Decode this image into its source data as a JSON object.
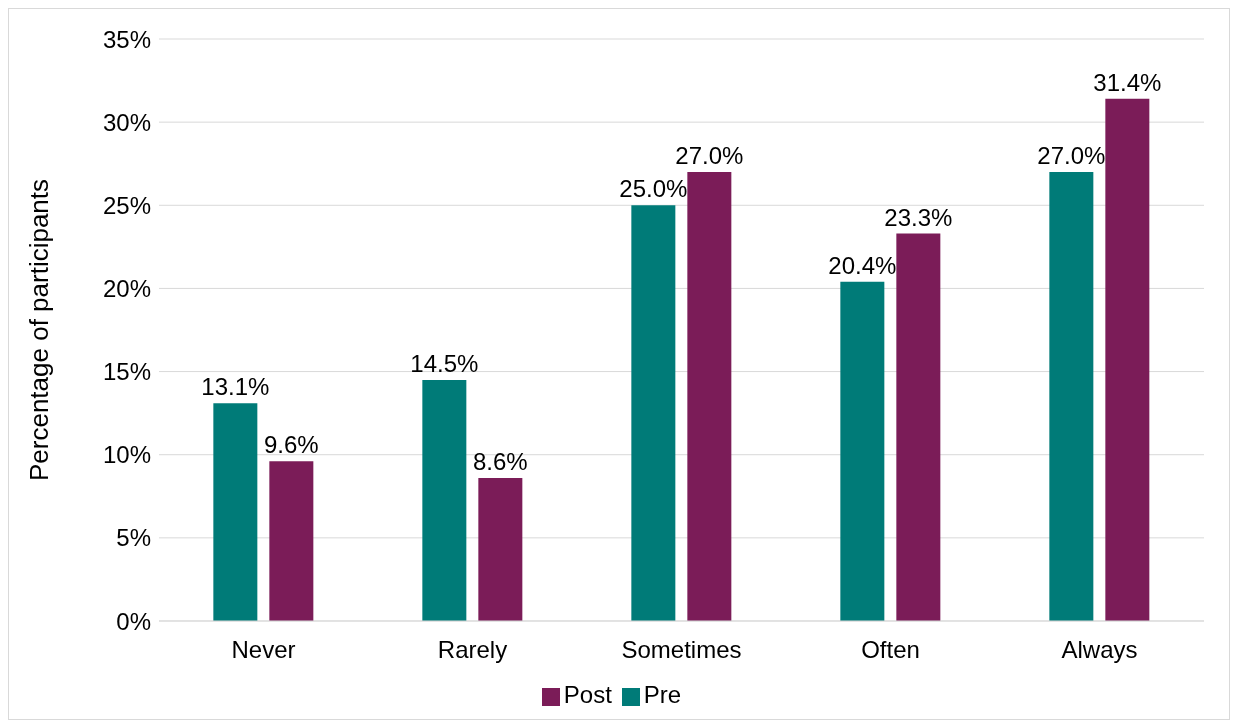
{
  "chart_data": {
    "type": "bar",
    "ylabel": "Percentage of participants",
    "categories": [
      "Never",
      "Rarely",
      "Sometimes",
      "Often",
      "Always"
    ],
    "series": [
      {
        "name": "Pre",
        "color": "#007b78",
        "values": [
          13.1,
          14.5,
          25.0,
          20.4,
          27.0
        ],
        "value_labels": [
          "13.1%",
          "14.5%",
          "25.0%",
          "20.4%",
          "27.0%"
        ]
      },
      {
        "name": "Post",
        "color": "#7b1c58",
        "values": [
          9.6,
          8.6,
          27.0,
          23.3,
          31.4
        ],
        "value_labels": [
          "9.6%",
          "8.6%",
          "27.0%",
          "23.3%",
          "31.4%"
        ]
      }
    ],
    "ylim": [
      0,
      35
    ],
    "yticks": [
      {
        "value": 0,
        "label": "0%"
      },
      {
        "value": 5,
        "label": "5%"
      },
      {
        "value": 10,
        "label": "10%"
      },
      {
        "value": 15,
        "label": "15%"
      },
      {
        "value": 20,
        "label": "20%"
      },
      {
        "value": 25,
        "label": "25%"
      },
      {
        "value": 30,
        "label": "30%"
      },
      {
        "value": 35,
        "label": "35%"
      }
    ],
    "grid": "y",
    "legend": "bottom"
  }
}
